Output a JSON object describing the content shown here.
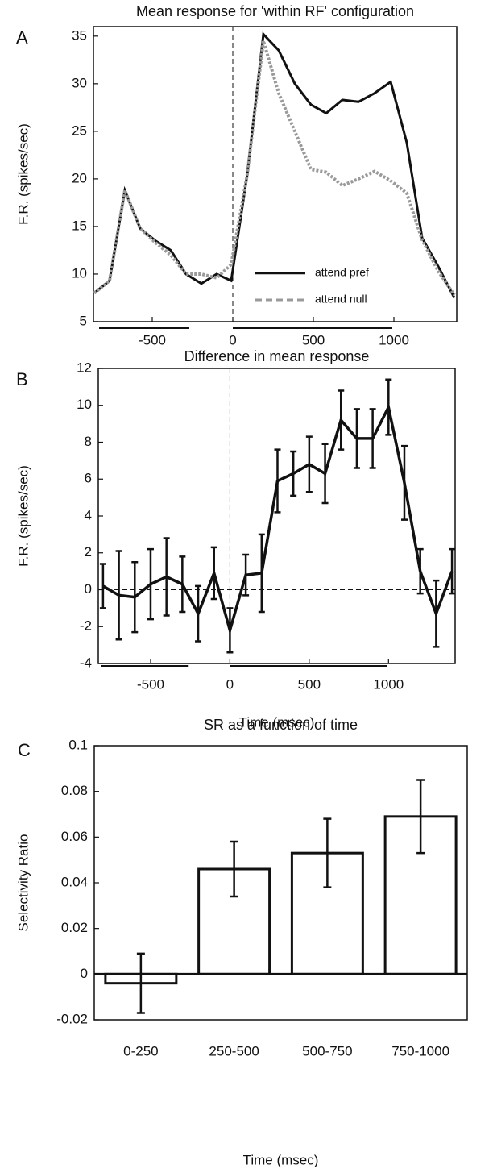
{
  "chart_data": [
    {
      "type": "line",
      "panel": "A",
      "title": "Mean response for 'within RF' configuration",
      "ylabel": "F.R. (spikes/sec)",
      "x": [
        -860,
        -765,
        -670,
        -575,
        -480,
        -385,
        -290,
        -195,
        -100,
        -10,
        90,
        190,
        285,
        385,
        485,
        580,
        680,
        780,
        880,
        980,
        1080,
        1175,
        1275,
        1375
      ],
      "series": [
        {
          "name": "attend pref",
          "color": "#111111",
          "dash": false,
          "values": [
            8,
            9.3,
            18.8,
            14.8,
            13.5,
            12.5,
            10,
            9,
            10,
            9.3,
            20.5,
            35.2,
            33.5,
            30,
            27.8,
            26.9,
            28.3,
            28.1,
            29,
            30.2,
            23.8,
            13.8,
            10.8,
            7.5
          ]
        },
        {
          "name": "attend null",
          "color": "#9a9a9a",
          "dash": true,
          "values": [
            8,
            9.3,
            18.8,
            14.8,
            13.3,
            12,
            10,
            10,
            9.6,
            11,
            20.5,
            34.5,
            29,
            25,
            21,
            20.7,
            19.3,
            20,
            20.8,
            19.8,
            18.5,
            13.6,
            10.3,
            7.8
          ]
        }
      ],
      "xlim": [
        -865,
        1390
      ],
      "ylim": [
        5,
        36
      ],
      "xticks": [
        -500,
        0,
        500,
        1000
      ],
      "yticks": [
        5,
        10,
        15,
        20,
        25,
        30,
        35
      ],
      "vline": 0,
      "underlines": [
        [
          -830,
          -270
        ],
        [
          0,
          990
        ]
      ],
      "legend": "lower right"
    },
    {
      "type": "line",
      "panel": "B",
      "title": "Difference in mean response",
      "ylabel": "F.R. (spikes/sec)",
      "xlabel": "Time (msec)",
      "x": [
        -800,
        -700,
        -600,
        -500,
        -400,
        -300,
        -200,
        -100,
        0,
        100,
        200,
        300,
        400,
        500,
        600,
        700,
        800,
        900,
        1000,
        1100,
        1200,
        1300,
        1400
      ],
      "values": [
        0.2,
        -0.3,
        -0.4,
        0.3,
        0.7,
        0.3,
        -1.3,
        0.9,
        -2.2,
        0.8,
        0.9,
        5.9,
        6.3,
        6.8,
        6.3,
        9.2,
        8.2,
        8.2,
        9.9,
        5.8,
        1.0,
        -1.3,
        1.0
      ],
      "errors": [
        1.2,
        2.4,
        1.9,
        1.9,
        2.1,
        1.5,
        1.5,
        1.4,
        1.2,
        1.1,
        2.1,
        1.7,
        1.2,
        1.5,
        1.6,
        1.6,
        1.6,
        1.6,
        1.5,
        2.0,
        1.2,
        1.8,
        1.2
      ],
      "color": "#111111",
      "xlim": [
        -830,
        1420
      ],
      "ylim": [
        -4,
        12
      ],
      "xticks": [
        -500,
        0,
        500,
        1000
      ],
      "yticks": [
        -4,
        -2,
        0,
        2,
        4,
        6,
        8,
        10,
        12
      ],
      "vline": 0,
      "hline": 0,
      "underlines": [
        [
          -810,
          -260
        ],
        [
          0,
          990
        ]
      ]
    },
    {
      "type": "bar",
      "panel": "C",
      "title": "SR as a function of time",
      "ylabel": "Selectivity Ratio",
      "xlabel": "Time (msec)",
      "categories": [
        "0-250",
        "250-500",
        "500-750",
        "750-1000"
      ],
      "values": [
        -0.004,
        0.046,
        0.053,
        0.069
      ],
      "errors": [
        0.013,
        0.012,
        0.015,
        0.016
      ],
      "color": "#ffffff",
      "ylim": [
        -0.02,
        0.1
      ],
      "yticks": [
        -0.02,
        0,
        0.02,
        0.04,
        0.06,
        0.08,
        0.1
      ]
    }
  ]
}
